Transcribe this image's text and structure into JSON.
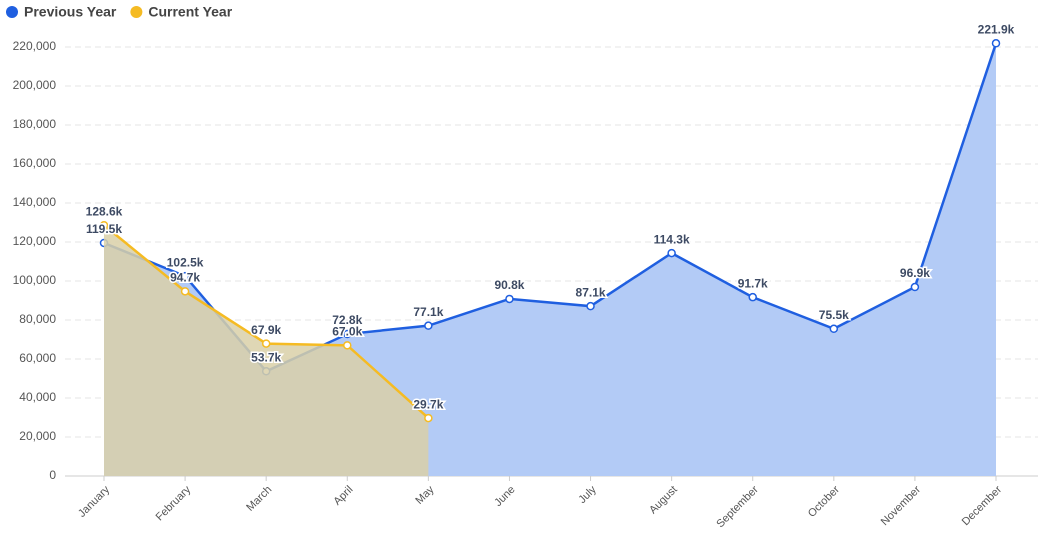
{
  "chart_data": {
    "type": "line",
    "categories": [
      "January",
      "February",
      "March",
      "April",
      "May",
      "June",
      "July",
      "August",
      "September",
      "October",
      "November",
      "December"
    ],
    "series": [
      {
        "name": "Previous Year",
        "color": "#1f5fe0",
        "area_color": "#b3cbf6",
        "values": [
          119500,
          102500,
          53700,
          72800,
          77100,
          90800,
          87100,
          114300,
          91700,
          75500,
          96900,
          221900
        ],
        "value_labels": [
          "119.5k",
          "102.5k",
          "53.7k",
          "72.8k",
          "77.1k",
          "90.8k",
          "87.1k",
          "114.3k",
          "91.7k",
          "75.5k",
          "96.9k",
          "221.9k"
        ]
      },
      {
        "name": "Current Year",
        "color": "#f5bb23",
        "area_color": "#d9d0a8",
        "values": [
          128600,
          94700,
          67900,
          67000,
          29700,
          null,
          null,
          null,
          null,
          null,
          null,
          null
        ],
        "value_labels": [
          "128.6k",
          "94.7k",
          "67.9k",
          "67.0k",
          "29.7k",
          null,
          null,
          null,
          null,
          null,
          null,
          null
        ]
      }
    ],
    "ylim": [
      0,
      220000
    ],
    "yticks": [
      0,
      {
        "value": 20000,
        "label": "20,000"
      },
      {
        "value": 40000,
        "label": "40,000"
      },
      {
        "value": 60000,
        "label": "60,000"
      },
      {
        "value": 80000,
        "label": "80,000"
      },
      {
        "value": 100000,
        "label": "100,000"
      },
      {
        "value": 120000,
        "label": "120,000"
      },
      {
        "value": 140000,
        "label": "140,000"
      },
      {
        "value": 160000,
        "label": "160,000"
      },
      {
        "value": 180000,
        "label": "180,000"
      },
      {
        "value": 200000,
        "label": "200,000"
      },
      {
        "value": 220000,
        "label": "220,000"
      }
    ],
    "grid": true,
    "legend": "top-left"
  }
}
